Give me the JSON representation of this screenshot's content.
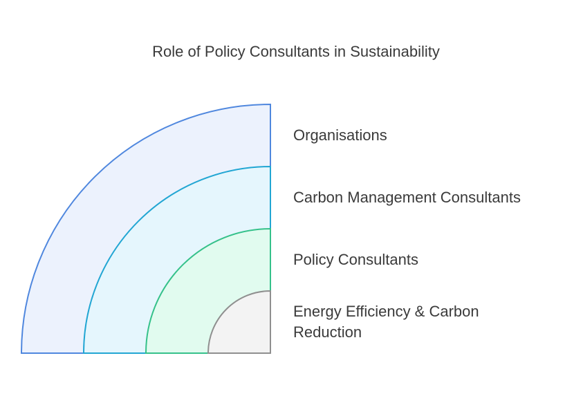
{
  "title": "Role of Policy Consultants in Sustainability",
  "layers": [
    {
      "label": "Organisations",
      "fill": "#ecf2fd",
      "stroke": "#4f87de"
    },
    {
      "label": "Carbon Management Consultants",
      "fill": "#e5f6fd",
      "stroke": "#22a6d3"
    },
    {
      "label": "Policy Consultants",
      "fill": "#e1fbef",
      "stroke": "#35c18a"
    },
    {
      "label": "Energy Efficiency & Carbon Reduction",
      "fill": "#f3f3f3",
      "stroke": "#8f8f8f"
    }
  ]
}
